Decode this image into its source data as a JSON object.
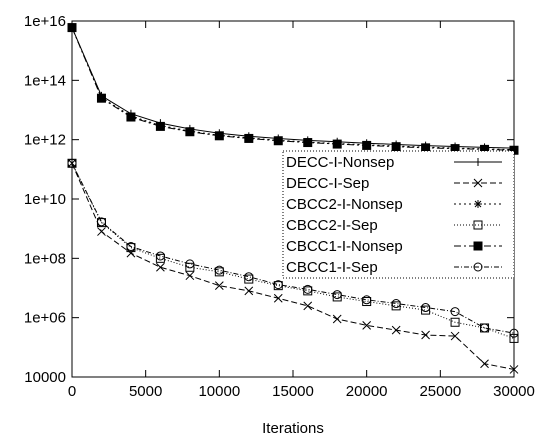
{
  "chart_data": {
    "type": "line",
    "title": "",
    "xlabel": "Iterations",
    "ylabel": "",
    "xlim": [
      0,
      30000
    ],
    "ylim": [
      10000,
      1e+16
    ],
    "yscale": "log",
    "grid": false,
    "legend_position": "right",
    "x_ticks": [
      0,
      5000,
      10000,
      15000,
      20000,
      25000,
      30000
    ],
    "x_tick_labels": [
      "0",
      "5000",
      "10000",
      "15000",
      "20000",
      "25000",
      "30000"
    ],
    "y_ticks": [
      10000,
      1000000,
      100000000,
      10000000000,
      1000000000000,
      100000000000000,
      10000000000000000
    ],
    "y_tick_labels": [
      "10000",
      "1e+06",
      "1e+08",
      "1e+10",
      "1e+12",
      "1e+14",
      "1e+16"
    ],
    "x": [
      0,
      2000,
      4000,
      6000,
      8000,
      10000,
      12000,
      14000,
      16000,
      18000,
      20000,
      22000,
      24000,
      26000,
      28000,
      30000
    ],
    "series": [
      {
        "name": "DECC-I-Nonsep",
        "dash": "",
        "marker": "plus",
        "values": [
          6000000000000000.0,
          30000000000000.0,
          7500000000000.0,
          3600000000000.0,
          2300000000000.0,
          1650000000000.0,
          1300000000000.0,
          1100000000000.0,
          950000000000.0,
          850000000000.0,
          760000000000.0,
          690000000000.0,
          630000000000.0,
          590000000000.0,
          550000000000.0,
          520000000000.0
        ]
      },
      {
        "name": "DECC-I-Sep",
        "dash": "6,3",
        "marker": "x",
        "values": [
          160000000000.0,
          800000000.0,
          150000000.0,
          50000000.0,
          26000000.0,
          12000000.0,
          8000000.0,
          4500000.0,
          2500000.0,
          900000.0,
          550000.0,
          380000.0,
          260000.0,
          240000.0,
          28000.0,
          18000.0
        ]
      },
      {
        "name": "CBCC2-I-Nonsep",
        "dash": "2,3",
        "marker": "star",
        "values": [
          6000000000000000.0,
          26000000000000.0,
          6300000000000.0,
          3000000000000.0,
          1950000000000.0,
          1400000000000.0,
          1150000000000.0,
          950000000000.0,
          830000000000.0,
          740000000000.0,
          670000000000.0,
          610000000000.0,
          560000000000.0,
          520000000000.0,
          490000000000.0,
          460000000000.0
        ]
      },
      {
        "name": "CBCC2-I-Sep",
        "dash": "1,2",
        "marker": "square",
        "values": [
          160000000000.0,
          1600000000.0,
          230000000.0,
          100000000.0,
          50000000.0,
          35000000.0,
          20000000.0,
          12000000.0,
          8000000.0,
          5000000.0,
          3500000.0,
          2500000.0,
          1800000.0,
          700000.0,
          450000.0,
          200000.0
        ]
      },
      {
        "name": "CBCC1-I-Nonsep",
        "dash": "7,3,2,3",
        "marker": "filled-square",
        "values": [
          6000000000000000.0,
          25000000000000.0,
          5800000000000.0,
          2800000000000.0,
          1850000000000.0,
          1350000000000.0,
          1100000000000.0,
          920000000000.0,
          800000000000.0,
          710000000000.0,
          640000000000.0,
          580000000000.0,
          530000000000.0,
          500000000000.0,
          470000000000.0,
          440000000000.0
        ]
      },
      {
        "name": "CBCC1-I-Sep",
        "dash": "5,2,1,2",
        "marker": "circle",
        "values": [
          160000000000.0,
          1700000000.0,
          250000000.0,
          120000000.0,
          65000000.0,
          40000000.0,
          24000000.0,
          13000000.0,
          9000000.0,
          6000000.0,
          4000000.0,
          3000000.0,
          2200000.0,
          1600000.0,
          450000.0,
          300000.0
        ]
      }
    ]
  }
}
